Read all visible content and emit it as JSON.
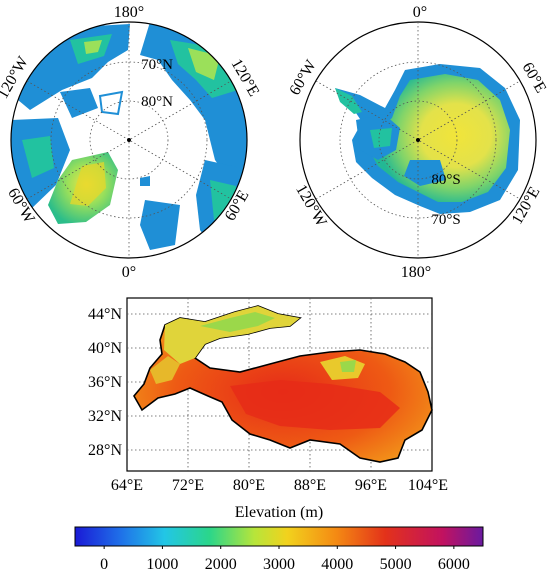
{
  "arctic_panel": {
    "lon_labels": {
      "top": "180°",
      "bottom": "0°",
      "upper_left": "120°W",
      "lower_left": "60°W",
      "upper_right": "120°E",
      "lower_right": "60°E"
    },
    "lat_labels": [
      "70°N",
      "80°N"
    ]
  },
  "antarctic_panel": {
    "lon_labels": {
      "top": "0°",
      "bottom": "180°",
      "upper_left": "60°W",
      "lower_left": "120°W",
      "upper_right": "60°E",
      "lower_right": "120°E"
    },
    "lat_labels": [
      "80°S",
      "70°S"
    ]
  },
  "tibet_panel": {
    "y_ticks": [
      "44°N",
      "40°N",
      "36°N",
      "32°N",
      "28°N"
    ],
    "x_ticks": [
      "64°E",
      "72°E",
      "80°E",
      "88°E",
      "96°E",
      "104°E"
    ]
  },
  "colorbar": {
    "title": "Elevation (m)",
    "ticks": [
      "0",
      "1000",
      "2000",
      "3000",
      "4000",
      "5000",
      "6000"
    ],
    "range": [
      -500,
      6500
    ],
    "colors": [
      "#1a1ad6",
      "#1f6fe8",
      "#22c6e6",
      "#2bd68a",
      "#b7e53a",
      "#f2d21d",
      "#f48a13",
      "#e3321a",
      "#c2125f",
      "#6a1aa0"
    ]
  },
  "map_colors": {
    "ocean": "#ffffff",
    "low": "#1f8fd6",
    "mid": "#22c2a0",
    "high": "#e7d72a",
    "peak": "#e3321a"
  }
}
